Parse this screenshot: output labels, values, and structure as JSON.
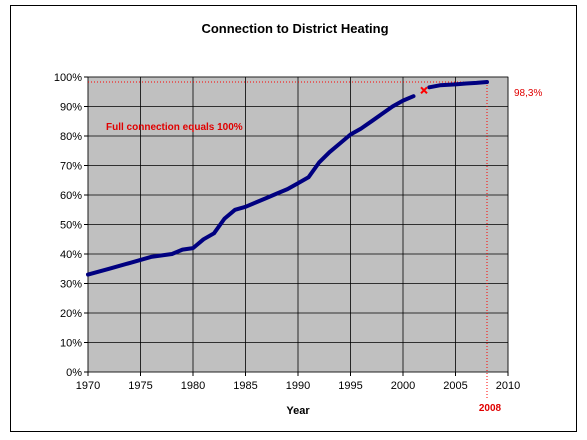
{
  "chart_data": {
    "type": "line",
    "title": "Connection to District Heating",
    "xlabel": "Year",
    "ylabel": "",
    "xlim": [
      1970,
      2010
    ],
    "ylim": [
      0,
      100
    ],
    "x_ticks": [
      "1970",
      "1975",
      "1980",
      "1985",
      "1990",
      "1995",
      "2000",
      "2005",
      "2010"
    ],
    "y_ticks": [
      "0%",
      "10%",
      "20%",
      "30%",
      "40%",
      "50%",
      "60%",
      "70%",
      "80%",
      "90%",
      "100%"
    ],
    "grid": true,
    "legend": "none",
    "series": [
      {
        "color": "#000080",
        "segments": [
          {
            "x": [
              1970,
              1972,
              1974,
              1976,
              1978,
              1979,
              1980,
              1981,
              1982,
              1983,
              1984,
              1985,
              1986,
              1987,
              1988,
              1989,
              1990,
              1991,
              1992,
              1993,
              1994,
              1995,
              1996,
              1997,
              1998,
              1999,
              2000,
              2001
            ],
            "y": [
              33,
              35,
              37,
              39,
              40,
              41.5,
              42,
              45,
              47,
              52,
              55,
              56,
              57.5,
              59,
              60.5,
              62,
              64,
              66,
              71,
              74.5,
              77.5,
              80.5,
              82.5,
              85,
              87.5,
              90,
              92,
              93.5
            ]
          },
          {
            "x": [
              2002.5,
              2003.5,
              2005,
              2006,
              2007,
              2008
            ],
            "y": [
              96.5,
              97.2,
              97.5,
              97.8,
              98,
              98.3
            ]
          }
        ]
      }
    ],
    "marker": {
      "x": 2002,
      "y": 95.5,
      "symbol": "x",
      "color": "#ff0000"
    },
    "reference_lines": {
      "x": 2008,
      "y": 98.3,
      "color": "#ff0000"
    },
    "annotations": {
      "full_connection": "Full connection equals 100%",
      "end_value": "98,3%",
      "end_year": "2008"
    }
  },
  "colors": {
    "plot_background": "#c0c0c0",
    "line": "#000080",
    "highlight": "#ff0000"
  }
}
